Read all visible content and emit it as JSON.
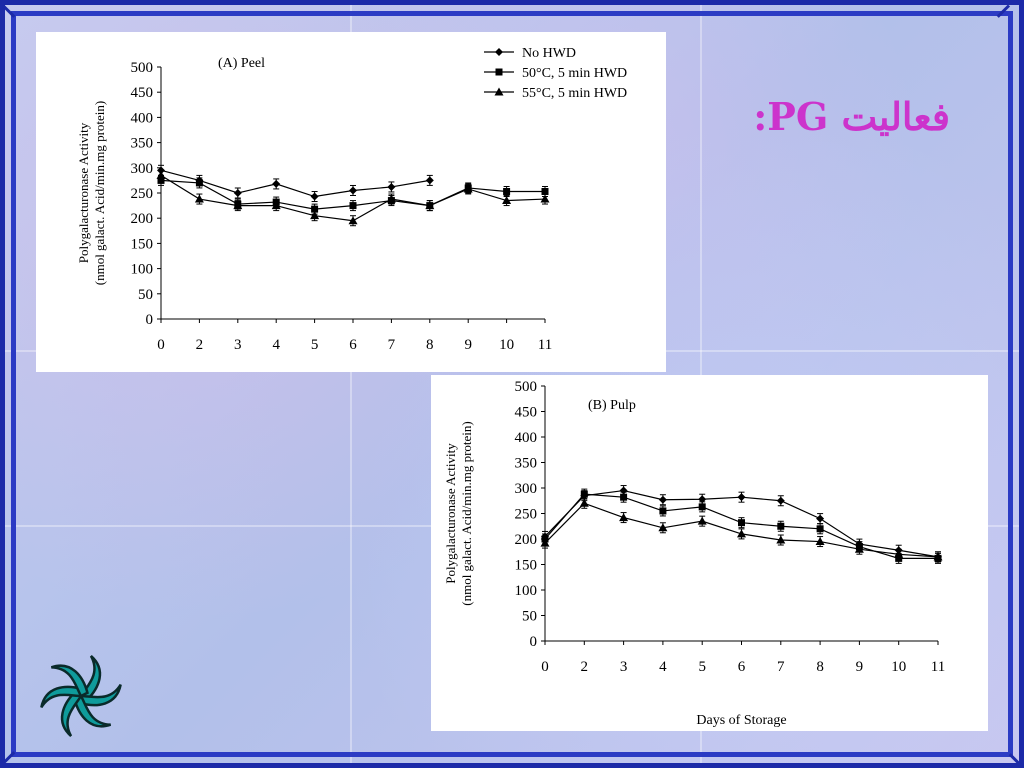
{
  "heading": "فعالیت PG:",
  "icons": {
    "logo": "teal-star-swirl-icon"
  },
  "colors": {
    "frame": "#1c2aa8",
    "heading": "#cc33cc",
    "logo_fill": "#0f9b9b",
    "series": "#000000"
  },
  "chart_data": [
    {
      "type": "line",
      "title": "(A) Peel",
      "xlabel": "",
      "ylabel": "Polygalacturonase Activity\n(nmol galact. Acid/min.mg protein)",
      "ylim": [
        0,
        500
      ],
      "yticks": [
        0,
        50,
        100,
        150,
        200,
        250,
        300,
        350,
        400,
        450,
        500
      ],
      "categories": [
        "0",
        "2",
        "3",
        "4",
        "5",
        "6",
        "7",
        "8",
        "9",
        "10",
        "11"
      ],
      "legend_position": "top-right",
      "series": [
        {
          "name": "No HWD",
          "marker": "diamond",
          "values": [
            295,
            275,
            250,
            268,
            243,
            255,
            262,
            275,
            null,
            null,
            null
          ]
        },
        {
          "name": "50°C, 5 min HWD",
          "marker": "square",
          "values": [
            275,
            270,
            228,
            232,
            218,
            225,
            235,
            225,
            260,
            253,
            253
          ]
        },
        {
          "name": "55°C, 5 min HWD",
          "marker": "triangle",
          "values": [
            285,
            238,
            225,
            225,
            205,
            195,
            238,
            225,
            258,
            235,
            238
          ]
        }
      ]
    },
    {
      "type": "line",
      "title": "(B) Pulp",
      "xlabel": "Days of Storage",
      "ylabel": "Polygalacturonase Activity\n(nmol galact. Acid/min.mg protein)",
      "ylim": [
        0,
        500
      ],
      "yticks": [
        0,
        50,
        100,
        150,
        200,
        250,
        300,
        350,
        400,
        450,
        500
      ],
      "categories": [
        "0",
        "2",
        "3",
        "4",
        "5",
        "6",
        "7",
        "8",
        "9",
        "10",
        "11"
      ],
      "series": [
        {
          "name": "No HWD",
          "marker": "diamond",
          "values": [
            205,
            285,
            295,
            277,
            278,
            282,
            275,
            240,
            190,
            178,
            165
          ]
        },
        {
          "name": "50°C, 5 min HWD",
          "marker": "square",
          "values": [
            200,
            288,
            282,
            255,
            263,
            232,
            225,
            220,
            185,
            162,
            162
          ]
        },
        {
          "name": "55°C, 5 min HWD",
          "marker": "triangle",
          "values": [
            192,
            270,
            242,
            222,
            235,
            210,
            198,
            195,
            180,
            170,
            165
          ]
        }
      ]
    }
  ]
}
